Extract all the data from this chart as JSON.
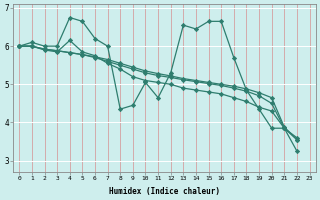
{
  "title": "",
  "xlabel": "Humidex (Indice chaleur)",
  "background_color": "#ceeeed",
  "grid_color": "#b8dedd",
  "line_color": "#2e7d6e",
  "xlim": [
    -0.5,
    23.5
  ],
  "ylim": [
    2.7,
    7.1
  ],
  "yticks": [
    3,
    4,
    5,
    6,
    7
  ],
  "xticks": [
    0,
    1,
    2,
    3,
    4,
    5,
    6,
    7,
    8,
    9,
    10,
    11,
    12,
    13,
    14,
    15,
    16,
    17,
    18,
    19,
    20,
    21,
    22,
    23
  ],
  "series": [
    {
      "x": [
        0,
        1,
        2,
        3,
        4,
        5,
        6,
        7,
        8,
        9,
        10,
        11,
        12,
        13,
        14,
        15,
        16,
        17,
        18,
        19,
        20,
        21,
        22
      ],
      "y": [
        6.0,
        6.1,
        6.0,
        6.0,
        6.75,
        6.65,
        6.2,
        6.0,
        4.35,
        4.45,
        5.05,
        4.65,
        5.3,
        6.55,
        6.45,
        6.65,
        6.65,
        5.7,
        4.85,
        4.35,
        3.85,
        3.85,
        3.6
      ]
    },
    {
      "x": [
        0,
        1,
        2,
        3,
        4,
        5,
        6,
        7,
        8,
        9,
        10,
        11,
        12,
        13,
        14,
        15,
        16,
        17,
        18,
        19,
        20,
        21,
        22
      ],
      "y": [
        6.0,
        6.0,
        5.9,
        5.85,
        6.15,
        5.85,
        5.75,
        5.55,
        5.4,
        5.2,
        5.1,
        5.05,
        5.0,
        4.9,
        4.85,
        4.8,
        4.75,
        4.65,
        4.55,
        4.4,
        4.3,
        3.85,
        3.55
      ]
    },
    {
      "x": [
        0,
        1,
        2,
        3,
        4,
        5,
        6,
        7,
        8,
        9,
        10,
        11,
        12,
        13,
        14,
        15,
        16,
        17,
        18,
        19,
        20,
        21,
        22
      ],
      "y": [
        6.0,
        6.0,
        5.92,
        5.88,
        5.83,
        5.78,
        5.72,
        5.65,
        5.55,
        5.45,
        5.35,
        5.28,
        5.22,
        5.15,
        5.1,
        5.05,
        5.0,
        4.95,
        4.88,
        4.78,
        4.65,
        3.88,
        3.55
      ]
    },
    {
      "x": [
        0,
        1,
        2,
        3,
        4,
        5,
        6,
        7,
        8,
        9,
        10,
        11,
        12,
        13,
        14,
        15,
        16,
        17,
        18,
        19,
        20,
        21,
        22
      ],
      "y": [
        6.0,
        6.0,
        5.92,
        5.88,
        5.83,
        5.78,
        5.7,
        5.6,
        5.5,
        5.4,
        5.3,
        5.23,
        5.18,
        5.12,
        5.07,
        5.02,
        4.97,
        4.9,
        4.82,
        4.7,
        4.5,
        3.85,
        3.25
      ]
    }
  ],
  "marker": "D",
  "markersize": 2.2,
  "linewidth": 0.9
}
